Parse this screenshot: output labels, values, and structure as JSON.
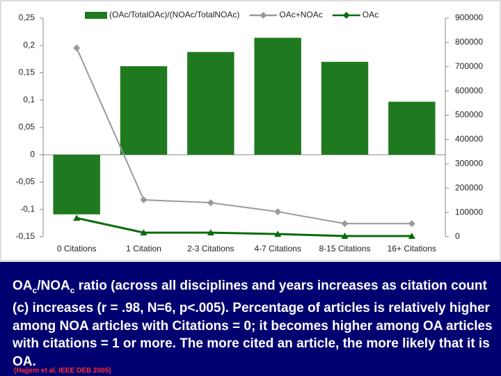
{
  "chart_data": {
    "type": "combo",
    "categories": [
      "0 Citations",
      "1 Citation",
      "2-3 Citations",
      "4-7 Citations",
      "8-15 Citations",
      "16+ Citations"
    ],
    "series": [
      {
        "name": "(OAc/TotalOAc)/(NOAc/TotalNOAc)",
        "type": "bar",
        "color": "#1f7a1f",
        "values": [
          -0.109,
          0.162,
          0.188,
          0.214,
          0.17,
          0.097
        ]
      },
      {
        "name": "OAc+NOAc",
        "type": "line",
        "axis": "y2",
        "marker": "diamond",
        "color": "#999999",
        "values": [
          777000,
          152000,
          140000,
          103000,
          54000,
          54000
        ]
      },
      {
        "name": "OAc",
        "type": "line",
        "axis": "y2",
        "marker": "triangle",
        "color": "#0a6b0a",
        "values": [
          77000,
          17000,
          17000,
          11000,
          3000,
          3000
        ]
      }
    ],
    "ylim": [
      -0.15,
      0.25
    ],
    "yticks": [
      {
        "value": -0.15,
        "label": "-0,15"
      },
      {
        "value": -0.1,
        "label": "-0,1"
      },
      {
        "value": -0.05,
        "label": "-0,05"
      },
      0,
      {
        "value": 0.05,
        "label": "0,05"
      },
      {
        "value": 0.1,
        "label": "0,1"
      },
      {
        "value": 0.15,
        "label": "0,15"
      },
      {
        "value": 0.2,
        "label": "0,2"
      },
      {
        "value": 0.25,
        "label": "0,25"
      }
    ],
    "y2lim": [
      0,
      900000
    ],
    "y2ticks": [
      0,
      100000,
      200000,
      300000,
      400000,
      500000,
      600000,
      700000,
      800000,
      900000
    ]
  },
  "caption": [
    {
      "text": "OA"
    },
    {
      "text": "c",
      "sub": true
    },
    {
      "text": "/NOA"
    },
    {
      "text": "c",
      "sub": true
    },
    {
      "text": " ratio (across all disciplines and years increases as citation count (c) increases (r = .98, N=6, p<.005). Percentage of articles is relatively higher among NOA articles with Citations = 0; it becomes higher among OA articles with citations = 1 or more. The more cited an article,  the more likely that it is OA."
    }
  ],
  "citation": "(Hajjem et al. IEEE DEB 2005)"
}
